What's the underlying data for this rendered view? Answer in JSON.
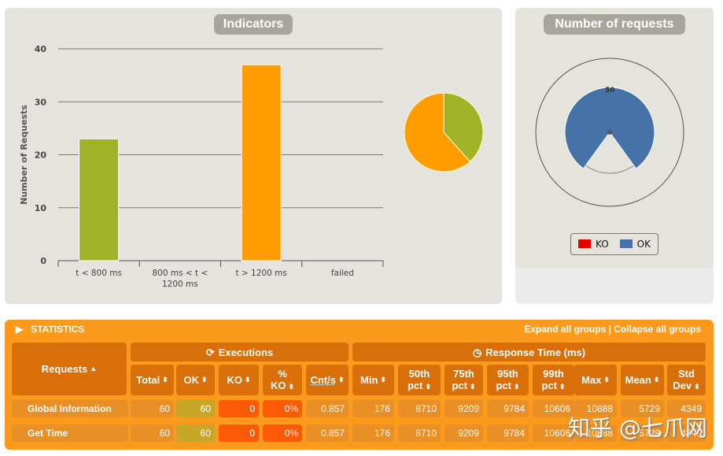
{
  "indicators": {
    "title": "Indicators"
  },
  "requests_panel": {
    "title": "Number of requests",
    "legend": [
      {
        "label": "KO",
        "color": "#e60000"
      },
      {
        "label": "OK",
        "color": "#4572a7"
      }
    ],
    "tick_label": "50"
  },
  "chart_data": [
    {
      "type": "bar",
      "title": "Indicators",
      "xlabel": "",
      "ylabel": "Number of Requests",
      "categories": [
        "t < 800 ms",
        "800 ms < t < 1200 ms",
        "t > 1200 ms",
        "failed"
      ],
      "values": [
        23,
        0,
        37,
        0
      ],
      "colors": [
        "#a0b228",
        "#ffa900",
        "#ff9d00",
        "#e60000"
      ],
      "ylim": [
        0,
        40
      ],
      "yticks": [
        0,
        10,
        20,
        30,
        40
      ],
      "grid": true
    },
    {
      "type": "pie",
      "title": "",
      "labels": [
        "t < 800 ms",
        "t > 1200 ms"
      ],
      "values": [
        23,
        37
      ],
      "colors": [
        "#a0b228",
        "#ff9d00"
      ]
    },
    {
      "type": "pie",
      "title": "Number of requests",
      "labels": [
        "KO",
        "OK"
      ],
      "values": [
        0,
        60
      ],
      "colors": [
        "#e60000",
        "#4572a7"
      ],
      "gauge_max": 50
    }
  ],
  "statistics": {
    "header": "STATISTICS",
    "expand_label": "Expand all groups",
    "separator": "|",
    "collapse_label": "Collapse all groups",
    "requests_header": "Requests",
    "executions_header": "Executions",
    "response_header": "Response Time (ms)",
    "columns": [
      "Total",
      "OK",
      "KO",
      "% KO",
      "Cnt/s",
      "Min",
      "50th pct",
      "75th pct",
      "95th pct",
      "99th pct",
      "Max",
      "Mean",
      "Std Dev"
    ],
    "rows": [
      {
        "name": "Global Information",
        "values": [
          "60",
          "60",
          "0",
          "0%",
          "0.857",
          "176",
          "8710",
          "9209",
          "9784",
          "10606",
          "10888",
          "5729",
          "4349"
        ]
      },
      {
        "name": "Get Time",
        "values": [
          "60",
          "60",
          "0",
          "0%",
          "0.857",
          "176",
          "8710",
          "9209",
          "9784",
          "10606",
          "10888",
          "5729",
          "4349"
        ]
      }
    ]
  },
  "watermark": "知乎 @七爪网"
}
